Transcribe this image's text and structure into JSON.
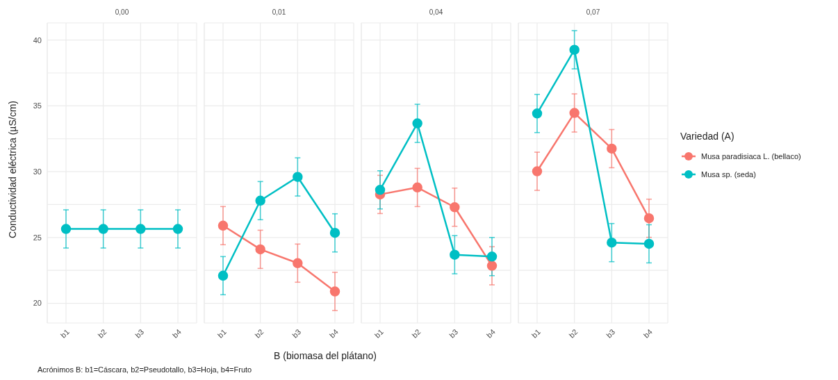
{
  "chart_data": [
    {
      "type": "line",
      "title": "0,00",
      "ylabel": "Conductividad eléctrica (µS/cm)",
      "annotations": [
        "Acrónimos B: b1=Cáscara, b2=Pseudotallo, b3=Hoja, b4=Fruto"
      ],
      "categories": [
        "b1",
        "b2",
        "b3",
        "b4"
      ],
      "ylim": [
        18.5,
        41.3
      ],
      "yticks": [
        20,
        {
          "value": 22.5,
          "label": null
        },
        25,
        {
          "value": 27.5,
          "label": null
        },
        30,
        {
          "value": 32.5,
          "label": null
        },
        35,
        {
          "value": 37.5,
          "label": null
        },
        40
      ],
      "grid": true,
      "marker": "circle",
      "line_style": "solid",
      "series": [
        {
          "color": "#00bfc4",
          "values": [
            25.65,
            25.65,
            25.65,
            25.65
          ],
          "errors": [
            1.45,
            1.45,
            1.45,
            1.45
          ]
        }
      ]
    },
    {
      "type": "line",
      "title": "0,01",
      "xlabel": "B (biomasa del plátano)",
      "categories": [
        "b1",
        "b2",
        "b3",
        "b4"
      ],
      "ylim": [
        18.5,
        41.3
      ],
      "yticks": [
        20,
        {
          "value": 22.5,
          "label": null
        },
        25,
        {
          "value": 27.5,
          "label": null
        },
        30,
        {
          "value": 32.5,
          "label": null
        },
        35,
        {
          "value": 37.5,
          "label": null
        },
        40
      ],
      "tick_labels": "x",
      "grid": true,
      "marker": "circle",
      "line_style": "solid",
      "series": [
        {
          "color": "#f8766d",
          "values": [
            25.9,
            24.1,
            23.05,
            20.9
          ],
          "errors": [
            1.45,
            1.45,
            1.45,
            1.45
          ]
        },
        {
          "color": "#00bfc4",
          "values": [
            22.1,
            27.8,
            29.6,
            25.35
          ],
          "errors": [
            1.45,
            1.45,
            1.45,
            1.45
          ]
        }
      ]
    },
    {
      "type": "line",
      "title": "0,04",
      "categories": [
        "b1",
        "b2",
        "b3",
        "b4"
      ],
      "ylim": [
        18.5,
        41.3
      ],
      "yticks": [
        20,
        {
          "value": 22.5,
          "label": null
        },
        25,
        {
          "value": 27.5,
          "label": null
        },
        30,
        {
          "value": 32.5,
          "label": null
        },
        35,
        {
          "value": 37.5,
          "label": null
        },
        40
      ],
      "tick_labels": "x",
      "grid": true,
      "marker": "circle",
      "line_style": "solid",
      "series": [
        {
          "color": "#f8766d",
          "values": [
            28.27,
            28.8,
            27.3,
            22.85
          ],
          "errors": [
            1.45,
            1.45,
            1.45,
            1.45
          ]
        },
        {
          "color": "#00bfc4",
          "values": [
            28.62,
            33.67,
            23.69,
            23.55
          ],
          "errors": [
            1.45,
            1.45,
            1.45,
            1.45
          ]
        }
      ]
    },
    {
      "type": "line",
      "title": "0,07",
      "legend_title": "Variedad (A)",
      "categories": [
        "b1",
        "b2",
        "b3",
        "b4"
      ],
      "ylim": [
        18.5,
        41.3
      ],
      "yticks": [
        20,
        {
          "value": 22.5,
          "label": null
        },
        25,
        {
          "value": 27.5,
          "label": null
        },
        30,
        {
          "value": 32.5,
          "label": null
        },
        35,
        {
          "value": 37.5,
          "label": null
        },
        40
      ],
      "tick_labels": "x",
      "grid": true,
      "marker": "circle",
      "line_style": "solid",
      "legend": "right",
      "series": [
        {
          "name": "Musa paradisiaca L. (bellaco)",
          "color": "#f8766d",
          "values": [
            30.03,
            34.46,
            31.75,
            26.46
          ],
          "errors": [
            1.45,
            1.45,
            1.45,
            1.45
          ]
        },
        {
          "name": "Musa sp. (seda)",
          "color": "#00bfc4",
          "values": [
            34.42,
            39.26,
            24.61,
            24.52
          ],
          "errors": [
            1.45,
            1.45,
            1.45,
            1.45
          ]
        }
      ]
    }
  ]
}
